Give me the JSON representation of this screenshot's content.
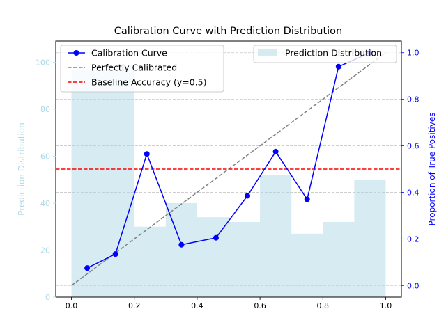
{
  "chart_data": {
    "type": "bar+line",
    "title": "Calibration Curve with Prediction Distribution",
    "xlabel": "",
    "ylabel_left": "Prediction Distribution",
    "ylabel_right": "Proportion of True Positives",
    "xlim": [
      -0.05,
      1.05
    ],
    "ylim_left": [
      0,
      109
    ],
    "ylim_right": [
      -0.05,
      1.05
    ],
    "x_ticks": [
      "0.0",
      "0.2",
      "0.4",
      "0.6",
      "0.8",
      "1.0"
    ],
    "y_left_ticks": [
      "0",
      "20",
      "40",
      "60",
      "80",
      "100"
    ],
    "y_right_ticks": [
      "0.0",
      "0.2",
      "0.4",
      "0.6",
      "0.8",
      "1.0"
    ],
    "grid": "horizontal dashed",
    "histogram": {
      "name": "Prediction Distribution",
      "color": "#add8e6",
      "bin_edges": [
        0.0,
        0.1,
        0.2,
        0.3,
        0.4,
        0.5,
        0.6,
        0.7,
        0.8,
        0.9,
        1.0
      ],
      "counts": [
        97,
        97,
        30,
        40,
        34,
        32,
        52,
        27,
        32,
        50
      ]
    },
    "series": [
      {
        "name": "Calibration Curve",
        "color": "#0000ff",
        "x": [
          0.05,
          0.14,
          0.24,
          0.35,
          0.46,
          0.56,
          0.65,
          0.75,
          0.85,
          0.95
        ],
        "y": [
          0.075,
          0.135,
          0.565,
          0.175,
          0.205,
          0.385,
          0.575,
          0.37,
          0.94,
          1.0
        ]
      },
      {
        "name": "Perfectly Calibrated",
        "color": "#808080",
        "style": "dashed",
        "x": [
          0.0,
          1.0
        ],
        "y": [
          0.0,
          1.0
        ]
      },
      {
        "name": "Baseline Accuracy (y=0.5)",
        "color": "#ff0000",
        "style": "dashed",
        "y": 0.5
      }
    ],
    "legend_left_placement": "upper-left",
    "legend_right_placement": "upper-right"
  }
}
